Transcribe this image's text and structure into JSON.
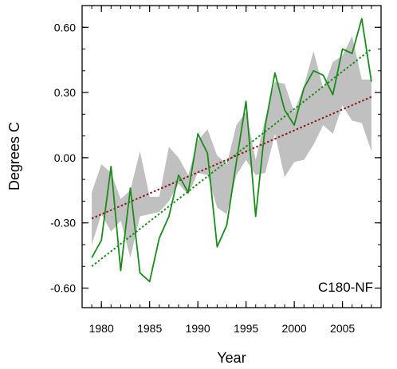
{
  "chart_data": {
    "type": "line",
    "xlabel": "Year",
    "ylabel": "Degrees C",
    "panel_label": "C180-NF",
    "xlim": [
      1978,
      2009
    ],
    "ylim": [
      -0.69,
      0.7
    ],
    "x_ticks": [
      1980,
      1985,
      1990,
      1995,
      2000,
      2005
    ],
    "x_tick_labels": [
      "1980",
      "1985",
      "1990",
      "1995",
      "2000",
      "2005"
    ],
    "y_ticks": [
      0.6,
      0.3,
      0.0,
      -0.3,
      -0.6
    ],
    "y_tick_labels": [
      "0.60",
      "0.30",
      "0.00",
      "-0.30",
      "-0.60"
    ],
    "x_minor_step": 1,
    "y_minor_step": 0.1,
    "grid": false,
    "colors": {
      "band": "#c0c0c0",
      "series": "#1a8c1a",
      "series_trend": "#1a8c1a",
      "band_trend": "#8b1a1a"
    },
    "x": [
      1979,
      1980,
      1981,
      1982,
      1983,
      1984,
      1985,
      1986,
      1987,
      1988,
      1989,
      1990,
      1991,
      1992,
      1993,
      1994,
      1995,
      1996,
      1997,
      1998,
      1999,
      2000,
      2001,
      2002,
      2003,
      2004,
      2005,
      2006,
      2007,
      2008
    ],
    "series": [
      {
        "values": [
          -0.46,
          -0.38,
          -0.04,
          -0.52,
          -0.14,
          -0.53,
          -0.57,
          -0.37,
          -0.27,
          -0.08,
          -0.16,
          0.11,
          0.02,
          -0.41,
          -0.31,
          -0.02,
          0.26,
          -0.27,
          0.15,
          0.39,
          0.22,
          0.15,
          0.32,
          0.4,
          0.38,
          0.29,
          0.5,
          0.48,
          0.64,
          0.35
        ]
      }
    ],
    "band": {
      "upper": [
        -0.16,
        -0.03,
        -0.07,
        -0.19,
        -0.15,
        0.03,
        -0.18,
        -0.18,
        0.05,
        0.0,
        -0.08,
        0.08,
        0.13,
        0.01,
        -0.03,
        0.15,
        0.21,
        -0.01,
        0.18,
        0.35,
        0.34,
        0.21,
        0.33,
        0.49,
        0.32,
        0.44,
        0.47,
        0.56,
        0.36,
        0.36
      ],
      "lower": [
        -0.4,
        -0.26,
        -0.34,
        -0.29,
        -0.46,
        -0.27,
        -0.26,
        -0.25,
        -0.2,
        -0.12,
        -0.17,
        -0.07,
        -0.08,
        -0.23,
        -0.26,
        -0.08,
        -0.01,
        -0.08,
        -0.07,
        0.11,
        -0.09,
        -0.02,
        -0.01,
        0.06,
        0.15,
        0.11,
        0.24,
        0.17,
        0.16,
        0.03
      ]
    },
    "trend_lines": [
      {
        "of": "series",
        "style": "dotted",
        "start": [
          1979,
          -0.5
        ],
        "end": [
          2008,
          0.5
        ]
      },
      {
        "of": "band",
        "style": "dotted",
        "start": [
          1979,
          -0.28
        ],
        "end": [
          2008,
          0.28
        ]
      }
    ]
  }
}
